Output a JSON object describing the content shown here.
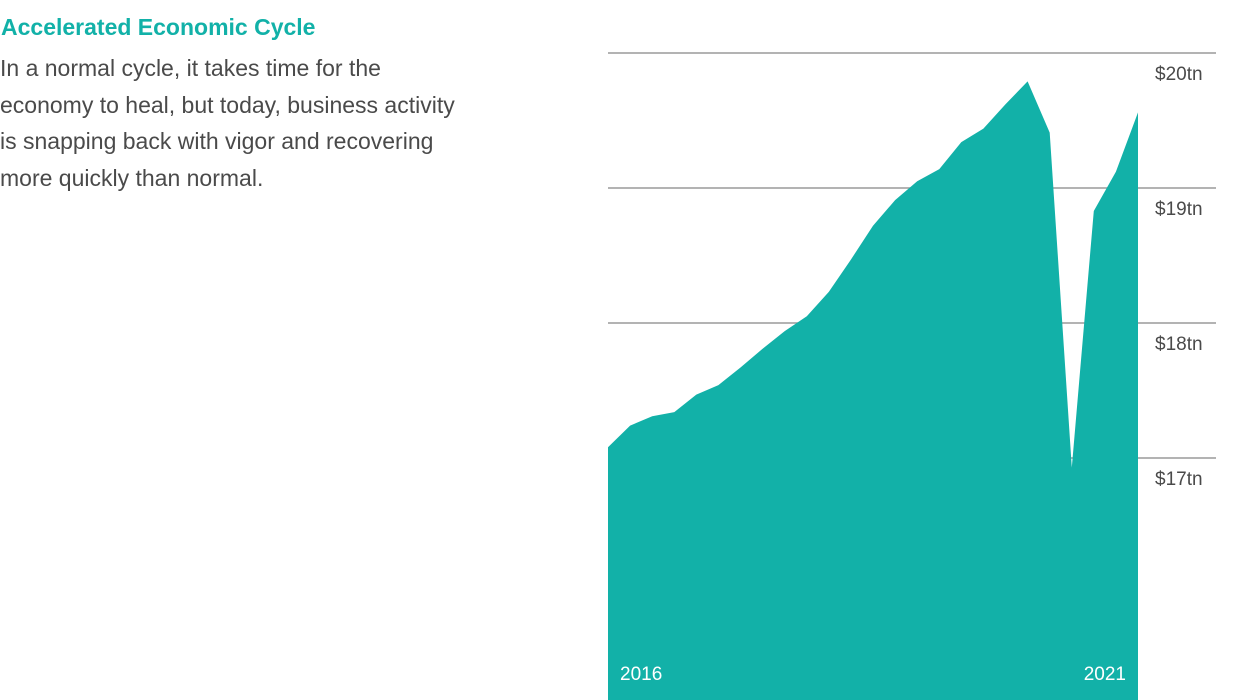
{
  "header": {
    "title": "Accelerated Economic Cycle",
    "description": "In a normal cycle, it takes time for the economy to heal, but today, business activity is snapping back with vigor and recovering more quickly than normal."
  },
  "colors": {
    "accent": "#12b1a8",
    "area_fill": "#12b1a8",
    "text": "#4a4a4a",
    "gridline": "#9a9a9a"
  },
  "chart_data": {
    "type": "area",
    "title": "",
    "xlabel": "",
    "ylabel": "",
    "x_start_label": "2016",
    "x_end_label": "2021",
    "yticks": [
      17,
      18,
      19,
      20
    ],
    "ytick_labels": [
      "$17tn",
      "$18tn",
      "$19tn",
      "$20tn"
    ],
    "grid": true,
    "series": [
      {
        "values": [
          17.08,
          17.24,
          17.31,
          17.34,
          17.47,
          17.54,
          17.67,
          17.81,
          17.94,
          18.05,
          18.23,
          18.47,
          18.72,
          18.91,
          19.05,
          19.14,
          19.34,
          19.44,
          19.62,
          19.79,
          19.41,
          16.93,
          18.83,
          19.12,
          19.56
        ]
      }
    ]
  }
}
